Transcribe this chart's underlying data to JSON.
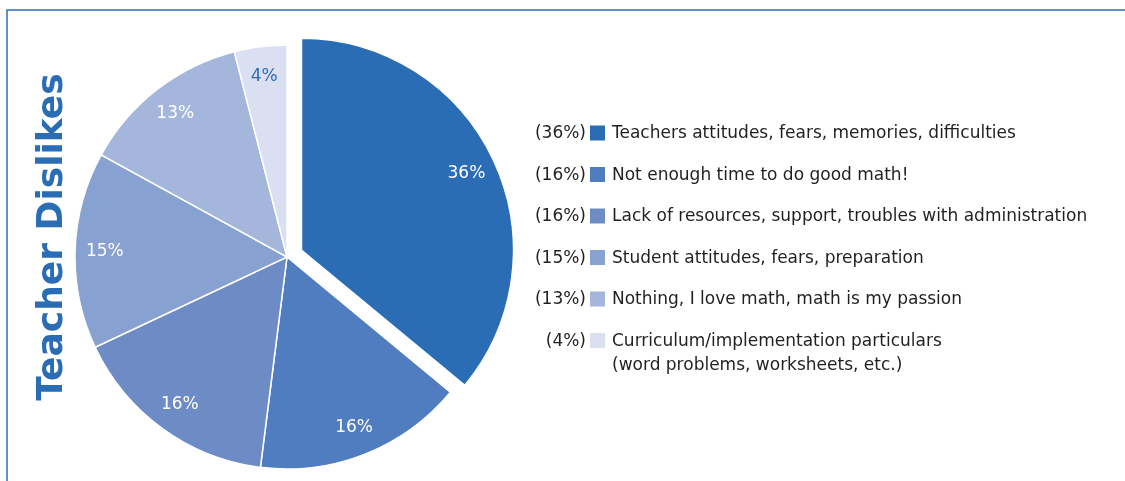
{
  "chart_data": {
    "type": "pie",
    "title": "Teacher Dislikes",
    "categories": [
      "Teachers attitudes, fears, memories, difficulties",
      "Not enough time to do good math!",
      "Lack of resources, support, troubles with administration",
      "Student attitudes, fears, preparation",
      "Nothing, I love math, math is my passion",
      "Curriculum/implementation particulars\n(word problems, worksheets, etc.)"
    ],
    "values": [
      36,
      16,
      16,
      15,
      13,
      4
    ],
    "value_labels": [
      "36%",
      "16%",
      "16%",
      "15%",
      "13%",
      "4%"
    ],
    "colors": [
      "#2b6db5",
      "#4f7dc0",
      "#6d8cc6",
      "#87a1d1",
      "#a5b6dd",
      "#dadff2"
    ],
    "annotations": [
      "(36%)",
      "(16%)",
      "(16%)",
      "(15%)",
      "(13%)",
      "(4%)"
    ],
    "legend": "right"
  }
}
